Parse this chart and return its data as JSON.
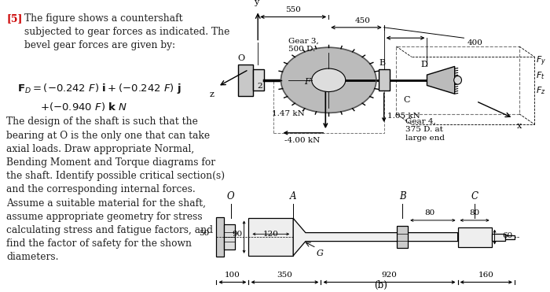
{
  "bg_color": "#ffffff",
  "text_color": "#222222",
  "red_color": "#cc0000",
  "problem_num": "[5]",
  "intro_text": "The figure shows a countershaft\nsubjected to gear forces as indicated. The\nbevel gear forces are given by:",
  "eq1": "$\\mathbf{F}_D = (-0.242\\ F)\\ \\mathit{\\mathbf{i}} + (-0.242\\ F)\\ \\mathit{\\mathbf{j}}$",
  "eq2": "$+ (-0.940\\ F)\\ \\mathit{\\mathbf{k}}\\ N$",
  "body_text": "The design of the shaft is such that the\nbearing at O is the only one that can take\naxial loads. Draw appropriate Normal,\nBending Moment and Torque diagrams for\nthe shaft. Identify possible critical section(s)\nand the corresponding internal forces.\nAssume a suitable material for the shaft,\nassume appropriate geometry for stress\ncalculating stress and fatigue factors, and\nfind the factor of safety for the shown\ndiameters.",
  "dim_550": "550",
  "dim_450": "450",
  "dim_400": "400",
  "gear3_label": "Gear 3,\n500 D.",
  "gear4_label": "Gear 4,\n375 D. at\nlarge end",
  "f_147": "1.47 kN",
  "f_105": "1.05 kN",
  "f_400": "-4.00 kN",
  "Fy": "$F_y$",
  "Ft": "$F_t$",
  "Fz": "$F_z$",
  "lbl_O": "O",
  "lbl_A": "A",
  "lbl_B": "B",
  "lbl_C": "C",
  "lbl_D": "D",
  "lbl_F": "F",
  "lbl_G": "G",
  "lbl_2": "2",
  "lbl_y": "y",
  "lbl_z": "z",
  "lbl_x": "x",
  "lbl_b": "(b)",
  "d50": "50",
  "d90": "90",
  "d120": "120",
  "d80a": "80",
  "d80b": "80",
  "d60": "60",
  "d100": "100",
  "d350": "350",
  "d920": "920",
  "d160": "160"
}
